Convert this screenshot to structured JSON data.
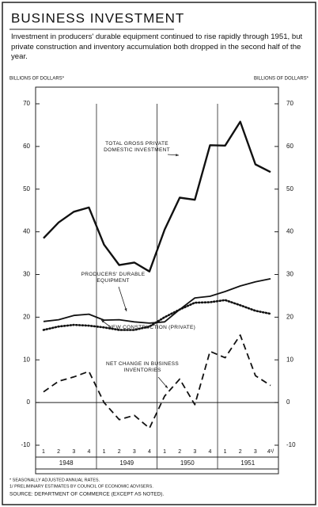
{
  "chart_data": {
    "type": "line",
    "title": "BUSINESS INVESTMENT",
    "subtitle": "Investment in producers' durable equipment continued to rise rapidly through 1951, but private construction and inventory accumulation both dropped in the second half of the year.",
    "ylabel": "BILLIONS OF DOLLARS*",
    "y2label": "BILLIONS OF DOLLARS*",
    "categories": [
      "1",
      "2",
      "3",
      "4",
      "1",
      "2",
      "3",
      "4",
      "1",
      "2",
      "3",
      "4",
      "1",
      "2",
      "3",
      "4¹/"
    ],
    "years": [
      "1948",
      "1949",
      "1950",
      "1951"
    ],
    "ylim": [
      -10,
      70
    ],
    "yticks": [
      -10,
      0,
      10,
      20,
      30,
      40,
      50,
      60,
      70
    ],
    "y2lim": [
      -10,
      70
    ],
    "y2ticks": [
      -10,
      0,
      10,
      20,
      30,
      40,
      50,
      60,
      70
    ],
    "series": [
      {
        "name": "TOTAL GROSS PRIVATE DOMESTIC INVESTMENT",
        "color": "#111111",
        "style": "solid",
        "width": 2.4,
        "values": [
          38.5,
          42.2,
          44.7,
          45.7,
          37,
          32.2,
          32.8,
          30.7,
          40.5,
          48,
          47.5,
          60.3,
          60.2,
          65.8,
          55.8,
          54
        ]
      },
      {
        "name": "PRODUCERS' DURABLE EQUIPMENT",
        "color": "#111111",
        "style": "solid",
        "width": 1.8,
        "values": [
          19,
          19.4,
          20.4,
          20.7,
          19.3,
          19.4,
          18.9,
          18.6,
          18.9,
          21.8,
          24.5,
          24.9,
          26,
          27.3,
          28.3,
          29
        ]
      },
      {
        "name": "NEW CONSTRUCTION (PRIVATE)",
        "color": "#111111",
        "style": "dotted",
        "width": 2.6,
        "values": [
          17,
          17.8,
          18.2,
          18,
          17.6,
          17,
          17,
          17.8,
          20,
          21.8,
          23.4,
          23.5,
          24,
          22.8,
          21.5,
          20.8
        ]
      },
      {
        "name": "NET CHANGE IN BUSINESS INVENTORIES",
        "color": "#111111",
        "style": "dashed",
        "width": 1.8,
        "values": [
          2.5,
          5,
          6,
          7.3,
          0,
          -4,
          -3,
          -6,
          1.5,
          5.5,
          -0.5,
          12,
          10.5,
          15.8,
          6.3,
          4
        ]
      }
    ],
    "notes": [
      "* SEASONALLY ADJUSTED ANNUAL RATES.",
      "1/ PRELIMINARY ESTIMATES BY COUNCIL OF ECONOMIC ADVISERS.",
      "SOURCE:  DEPARTMENT OF COMMERCE (EXCEPT AS NOTED)."
    ]
  }
}
